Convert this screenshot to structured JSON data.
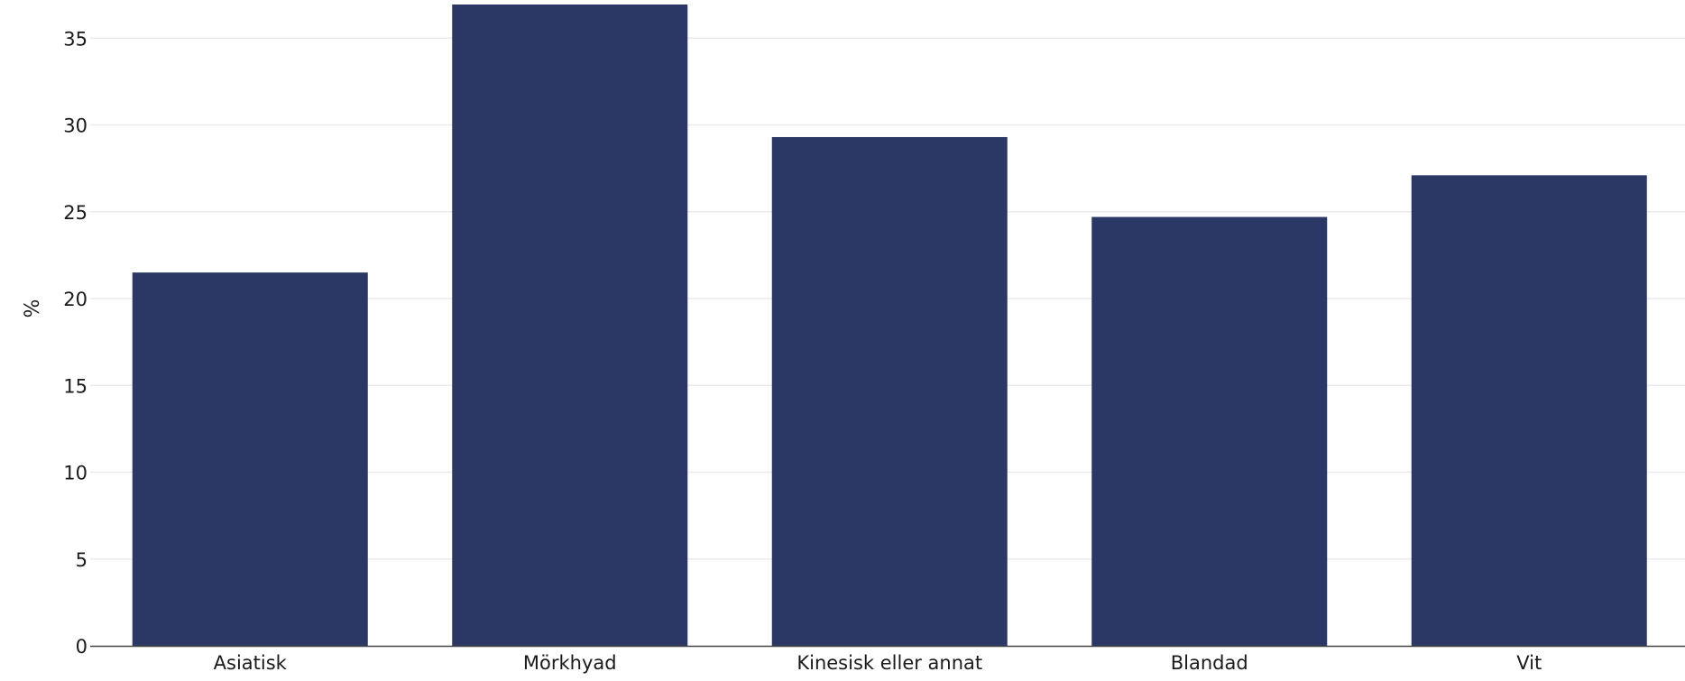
{
  "chart_data": {
    "type": "bar",
    "categories": [
      "Asiatisk",
      "Mörkhyad",
      "Kinesisk eller annat",
      "Blandad",
      "Vit"
    ],
    "values": [
      21.5,
      37,
      29.3,
      24.7,
      27.1
    ],
    "title": "",
    "xlabel": "",
    "ylabel": "%",
    "ylim": [
      0,
      37
    ],
    "yticks": [
      0,
      5,
      10,
      15,
      20,
      25,
      30,
      35
    ],
    "grid": true,
    "legend": "none",
    "colors": {
      "bar": "#2b3765",
      "grid": "#ebebeb",
      "baseline": "#444444",
      "text": "#1a1a1a"
    }
  }
}
